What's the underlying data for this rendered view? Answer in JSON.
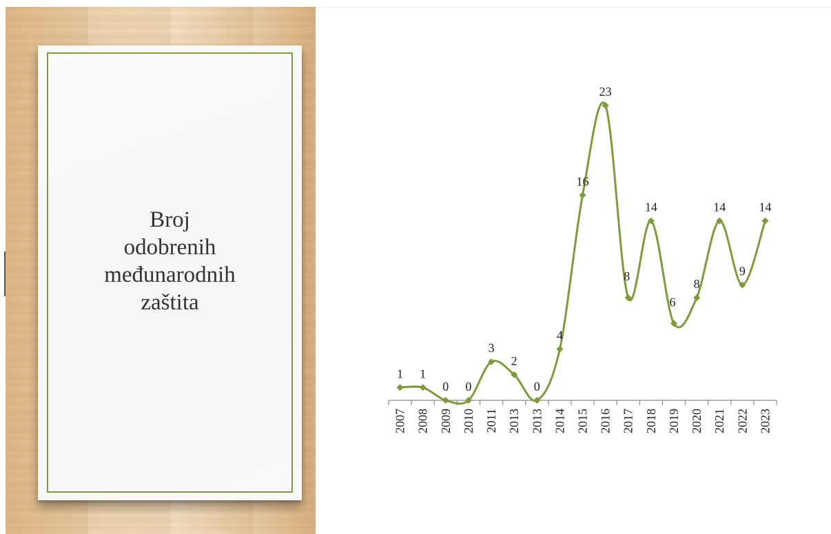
{
  "slide": {
    "title_lines": [
      "Broj",
      "odobrenih",
      "međunarodnih",
      "zaštita"
    ]
  },
  "colors": {
    "series": "#7f9a3c",
    "card_border": "#7f9a3c",
    "axis": "#8c8c8c"
  },
  "chart_data": {
    "type": "line",
    "smooth": true,
    "marker": "diamond",
    "title": "",
    "xlabel": "",
    "ylabel": "",
    "grid": false,
    "legend": "none",
    "categories": [
      "2007",
      "2008",
      "2009",
      "2010",
      "2011",
      "2013",
      "2013",
      "2014",
      "2015",
      "2016",
      "2017",
      "2018",
      "2019",
      "2020",
      "2021",
      "2022",
      "2023"
    ],
    "series": [
      {
        "values": [
          1,
          1,
          0,
          0,
          3,
          2,
          0,
          4,
          16,
          23,
          8,
          14,
          6,
          8,
          14,
          9,
          14
        ],
        "data_labels": true
      }
    ],
    "ylim": [
      0,
      23
    ]
  }
}
